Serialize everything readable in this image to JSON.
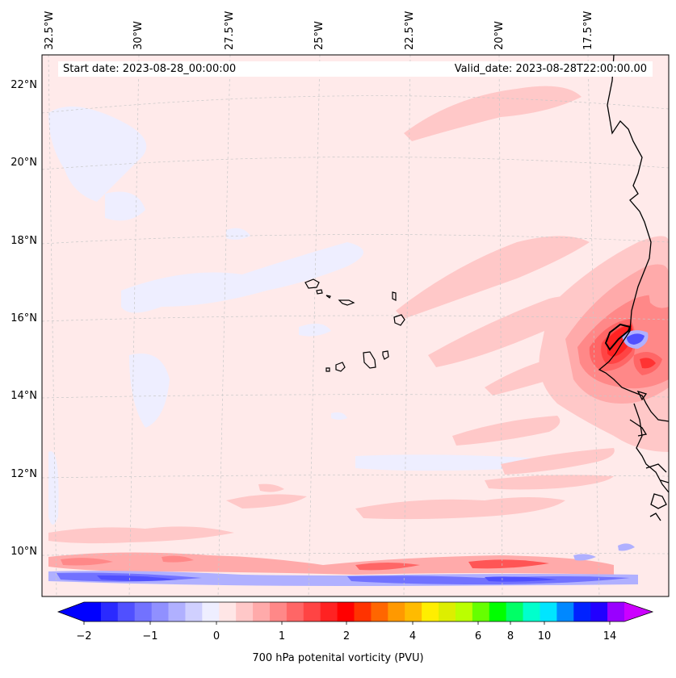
{
  "header": {
    "start_date": "Start date: 2023-08-28_00:00:00",
    "valid_date": "Valid_date: 2023-08-28T22:00:00.00"
  },
  "axes": {
    "lon_labels": [
      "32.5°W",
      "30°W",
      "27.5°W",
      "25°W",
      "22.5°W",
      "20°W",
      "17.5°W"
    ],
    "lat_labels": [
      "22°N",
      "20°N",
      "18°N",
      "16°N",
      "14°N",
      "12°N",
      "10°N"
    ]
  },
  "colorbar": {
    "label": "700 hPa potenital vorticity (PVU)",
    "ticks": [
      "−2",
      "−1",
      "0",
      "1",
      "2",
      "4",
      "6",
      "8",
      "10",
      "14"
    ],
    "colors": [
      "#0000ff",
      "#2a2aff",
      "#5050ff",
      "#7272ff",
      "#9090ff",
      "#b0b0ff",
      "#d0d0ff",
      "#eeeeff",
      "#ffe6e6",
      "#ffc8c8",
      "#ffaaaa",
      "#ff8888",
      "#ff6666",
      "#ff4444",
      "#ff2222",
      "#ff0000",
      "#ff3300",
      "#ff6600",
      "#ff9900",
      "#ffbb00",
      "#ffee00",
      "#ddee00",
      "#bbff00",
      "#66ff00",
      "#00ff00",
      "#00ff66",
      "#00ffcc",
      "#00e5ff",
      "#0088ff",
      "#0022ff",
      "#2200ff",
      "#9900ff"
    ],
    "under_color": "#0000ff",
    "over_color": "#cc00ff"
  },
  "map": {
    "background_color": "#ffeaea",
    "negative_color": "#eeeeff",
    "feature_colors": {
      "strong_positive": "#ff2222",
      "dipole_negative": "#3333ff",
      "coast": "#000000"
    }
  }
}
